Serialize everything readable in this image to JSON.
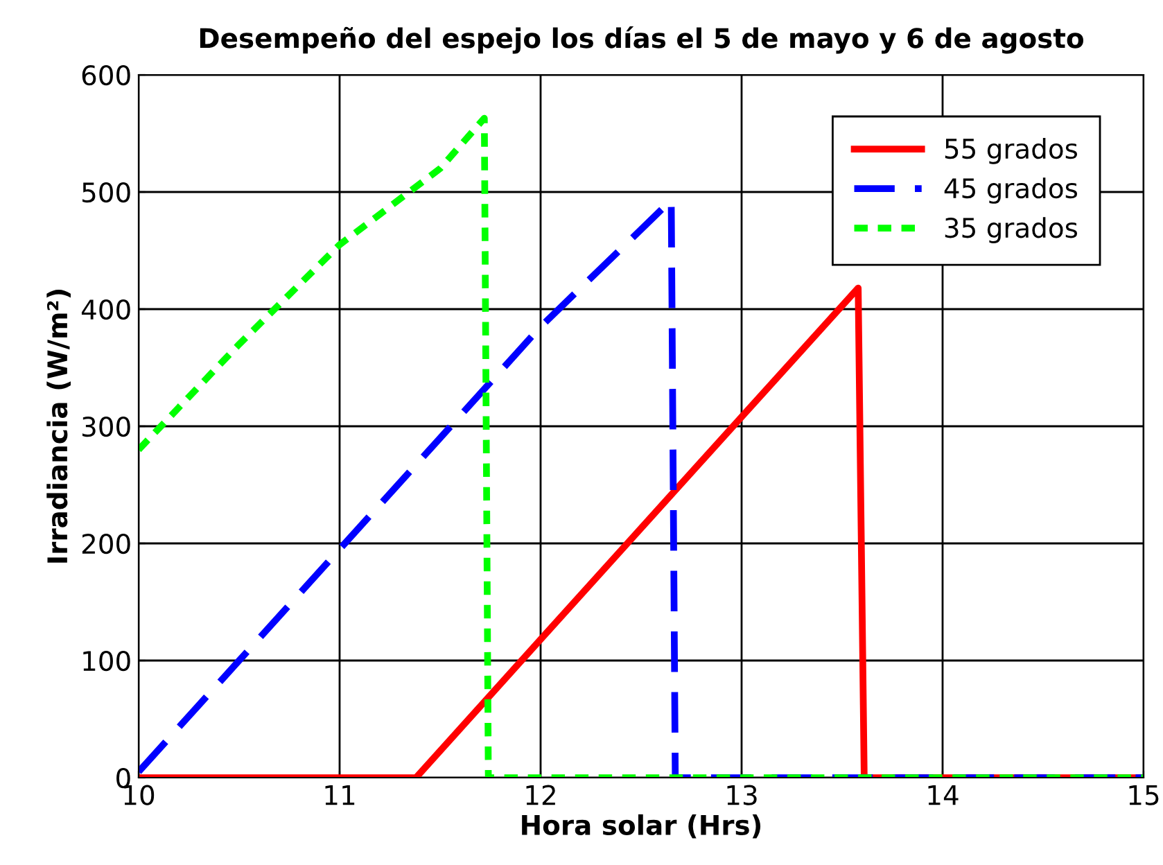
{
  "chart_data": {
    "type": "line",
    "title": "Desempeño del espejo los días el 5 de mayo y 6 de agosto",
    "xlabel": "Hora solar (Hrs)",
    "ylabel": "Irradiancia (W/m²)",
    "xlim": [
      10,
      15
    ],
    "ylim": [
      0,
      600
    ],
    "xticks": [
      10,
      11,
      12,
      13,
      14,
      15
    ],
    "yticks": [
      0,
      100,
      200,
      300,
      400,
      500,
      600
    ],
    "grid": true,
    "legend": "top right",
    "marker": "none",
    "series": [
      {
        "name": "55 grados",
        "color": "#ff0000",
        "line_style": "solid",
        "x": [
          10,
          11.38,
          12,
          12.5,
          13,
          13.58,
          13.61,
          15
        ],
        "values": [
          0,
          0,
          118,
          213,
          308,
          418,
          0,
          0
        ]
      },
      {
        "name": "45 grados",
        "color": "#0000ff",
        "line_style": "dashed",
        "x": [
          10,
          10.5,
          11,
          11.5,
          12,
          12.65,
          12.67,
          15
        ],
        "values": [
          5,
          100,
          195,
          290,
          385,
          493,
          0,
          0
        ]
      },
      {
        "name": "35 grados",
        "color": "#00ff00",
        "line_style": "dotted",
        "x": [
          10,
          10.5,
          11,
          11.5,
          11.72,
          11.74,
          15
        ],
        "values": [
          280,
          370,
          455,
          520,
          563,
          0,
          0
        ]
      }
    ]
  }
}
